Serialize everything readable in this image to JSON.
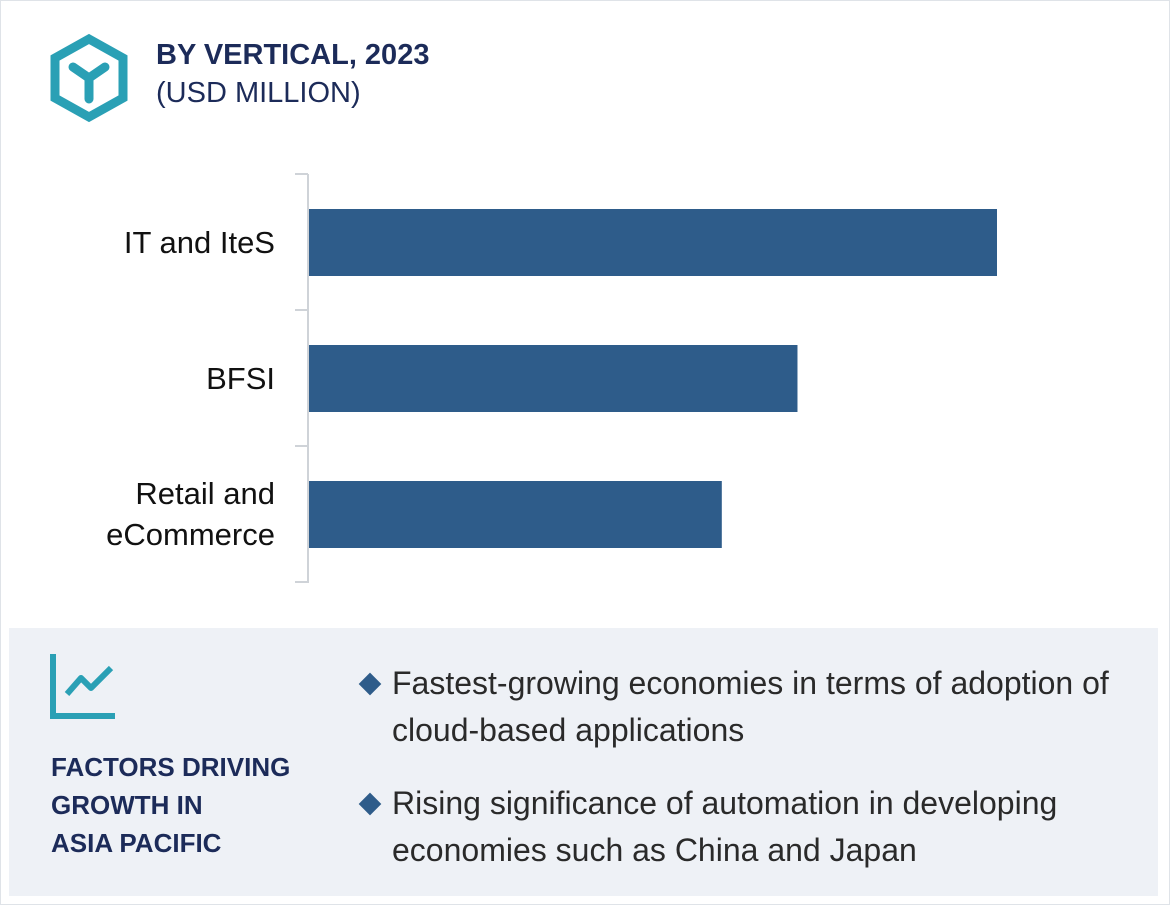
{
  "chart_data": {
    "type": "bar",
    "orientation": "horizontal",
    "title": "BY VERTICAL, 2023",
    "subtitle": "(USD MILLION)",
    "categories": [
      "IT and IteS",
      "BFSI",
      "Retail and eCommerce"
    ],
    "values": [
      100,
      71,
      60
    ],
    "color": "#2e5c8a"
  },
  "factors": {
    "title_lines": [
      "FACTORS DRIVING",
      "GROWTH IN",
      "ASIA PACIFIC"
    ],
    "items": [
      "Fastest-growing economies in terms of adoption of cloud-based applications",
      "Rising significance of automation in developing economies such as China and Japan"
    ]
  }
}
